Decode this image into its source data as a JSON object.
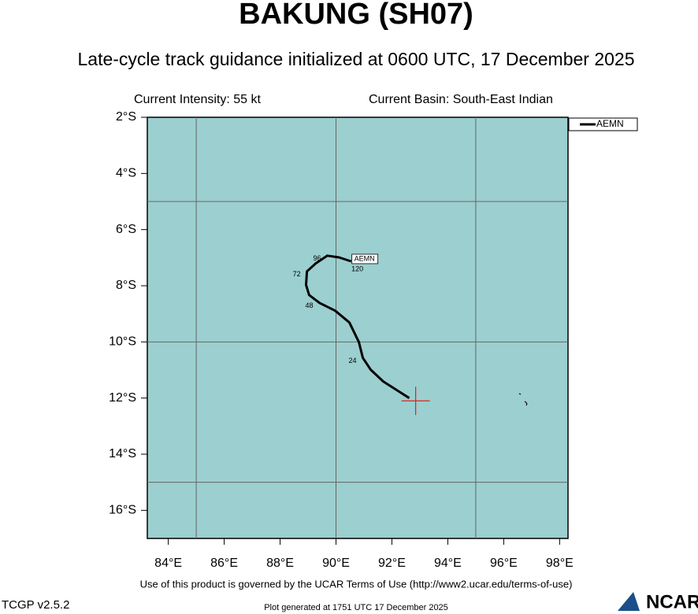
{
  "chart_data": {
    "type": "track-map",
    "title": "BAKUNG (SH07)",
    "subtitle": "Late-cycle track guidance initialized at 0600 UTC, 17 December 2025",
    "intensity_label": "Current Intensity: 55 kt",
    "basin_label": "Current Basin: South-East Indian",
    "xlim": [
      83.25,
      98.3
    ],
    "ylim": [
      -17,
      -2
    ],
    "xticks": [
      {
        "value": 84,
        "label": "84°E"
      },
      {
        "value": 86,
        "label": "86°E"
      },
      {
        "value": 88,
        "label": "88°E"
      },
      {
        "value": 90,
        "label": "90°E"
      },
      {
        "value": 92,
        "label": "92°E"
      },
      {
        "value": 94,
        "label": "94°E"
      },
      {
        "value": 96,
        "label": "96°E"
      },
      {
        "value": 98,
        "label": "98°E"
      }
    ],
    "yticks": [
      {
        "value": -2,
        "label": "2°S"
      },
      {
        "value": -4,
        "label": "4°S"
      },
      {
        "value": -6,
        "label": "6°S"
      },
      {
        "value": -8,
        "label": "8°S"
      },
      {
        "value": -10,
        "label": "10°S"
      },
      {
        "value": -12,
        "label": "12°S"
      },
      {
        "value": -14,
        "label": "14°S"
      },
      {
        "value": -16,
        "label": "16°S"
      }
    ],
    "gridlines": {
      "lon": [
        85,
        90,
        95
      ],
      "lat": [
        -5,
        -10,
        -15
      ]
    },
    "background_color": "#9ccfcf",
    "legend_position": "top-right",
    "series": [
      {
        "name": "AEMN",
        "color": "#000000",
        "lon": [
          92.62,
          91.69,
          91.24,
          90.96,
          90.82,
          90.48,
          89.97,
          89.41,
          89.04,
          88.93,
          88.96,
          89.27,
          89.69,
          90.11,
          90.54
        ],
        "lat": [
          -12.0,
          -11.41,
          -10.99,
          -10.57,
          -10.01,
          -9.31,
          -8.89,
          -8.61,
          -8.33,
          -7.97,
          -7.49,
          -7.21,
          -6.93,
          -6.99,
          -7.13
        ],
        "tau_labels": [
          null,
          null,
          null,
          "24",
          null,
          null,
          null,
          "48",
          null,
          null,
          "72",
          null,
          "96",
          null,
          "120"
        ]
      }
    ],
    "current_position": {
      "lon": 92.85,
      "lat": -12.1,
      "color": "#e02020"
    },
    "footer": "Use of this product is governed by the UCAR Terms of Use (http://www2.ucar.edu/terms-of-use)",
    "version": "TCGP v2.5.2",
    "generated": "Plot generated at 1751 UTC   17 December 2025",
    "logo": "NCAR"
  }
}
